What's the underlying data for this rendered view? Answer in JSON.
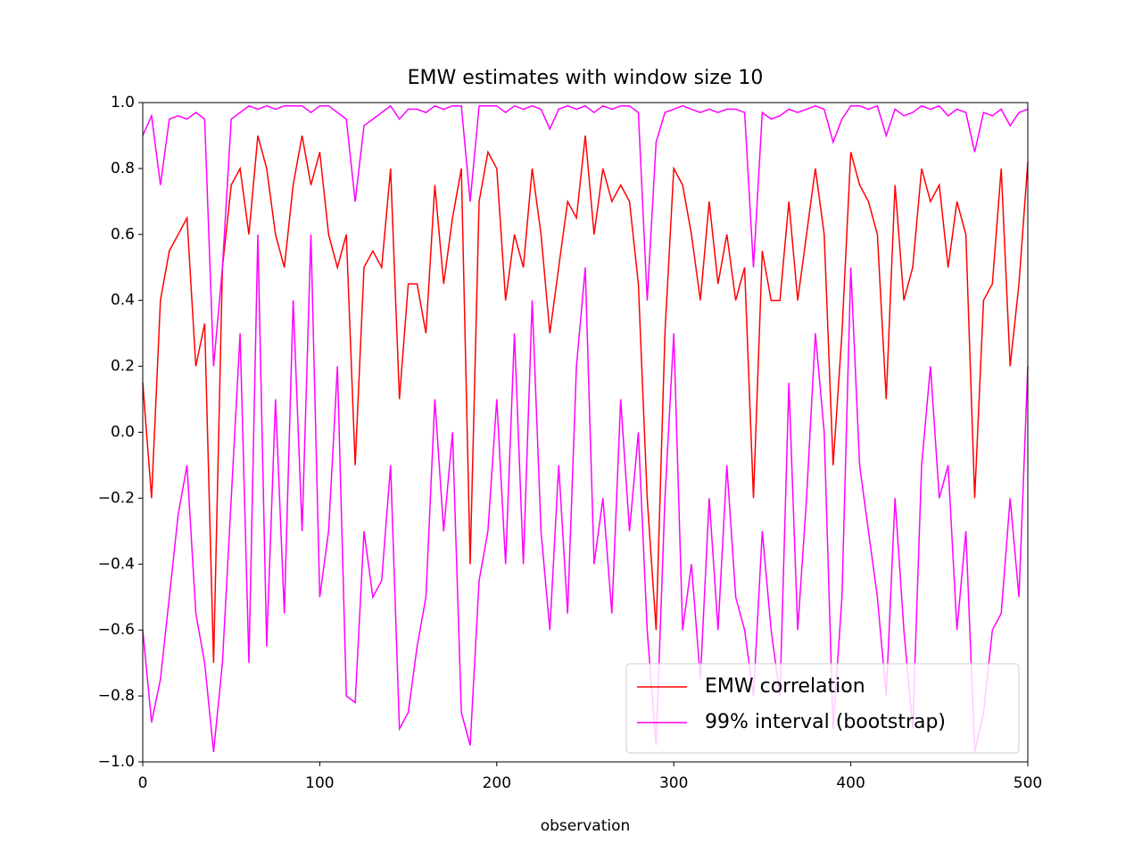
{
  "chart_data": {
    "type": "line",
    "title": "EMW estimates with window size 10",
    "x_label": "observation",
    "x": [
      0,
      5,
      10,
      15,
      20,
      25,
      30,
      35,
      40,
      45,
      50,
      55,
      60,
      65,
      70,
      75,
      80,
      85,
      90,
      95,
      100,
      105,
      110,
      115,
      120,
      125,
      130,
      135,
      140,
      145,
      150,
      155,
      160,
      165,
      170,
      175,
      180,
      185,
      190,
      195,
      200,
      205,
      210,
      215,
      220,
      225,
      230,
      235,
      240,
      245,
      250,
      255,
      260,
      265,
      270,
      275,
      280,
      285,
      290,
      295,
      300,
      305,
      310,
      315,
      320,
      325,
      330,
      335,
      340,
      345,
      350,
      355,
      360,
      365,
      370,
      375,
      380,
      385,
      390,
      395,
      400,
      405,
      410,
      415,
      420,
      425,
      430,
      435,
      440,
      445,
      450,
      455,
      460,
      465,
      470,
      475,
      480,
      485,
      490,
      495,
      500
    ],
    "series": [
      {
        "name": "EMW correlation",
        "color": "#ff0000",
        "values": [
          0.15,
          -0.2,
          0.4,
          0.55,
          0.6,
          0.65,
          0.2,
          0.33,
          -0.7,
          0.5,
          0.75,
          0.8,
          0.6,
          0.9,
          0.8,
          0.6,
          0.5,
          0.75,
          0.9,
          0.75,
          0.85,
          0.6,
          0.5,
          0.6,
          -0.1,
          0.5,
          0.55,
          0.5,
          0.8,
          0.1,
          0.45,
          0.45,
          0.3,
          0.75,
          0.45,
          0.65,
          0.8,
          -0.4,
          0.7,
          0.85,
          0.8,
          0.4,
          0.6,
          0.5,
          0.8,
          0.6,
          0.3,
          0.5,
          0.7,
          0.65,
          0.9,
          0.6,
          0.8,
          0.7,
          0.75,
          0.7,
          0.45,
          -0.2,
          -0.6,
          0.3,
          0.8,
          0.75,
          0.6,
          0.4,
          0.7,
          0.45,
          0.6,
          0.4,
          0.5,
          -0.2,
          0.55,
          0.4,
          0.4,
          0.7,
          0.4,
          0.6,
          0.8,
          0.6,
          -0.1,
          0.3,
          0.85,
          0.75,
          0.7,
          0.6,
          0.1,
          0.75,
          0.4,
          0.5,
          0.8,
          0.7,
          0.75,
          0.5,
          0.7,
          0.6,
          -0.2,
          0.4,
          0.45,
          0.8,
          0.2,
          0.45,
          0.82
        ]
      },
      {
        "name": "99% interval (bootstrap)",
        "color": "#ff00ff",
        "values": [
          0.9,
          0.96,
          0.75,
          0.95,
          0.96,
          0.95,
          0.97,
          0.95,
          0.2,
          0.5,
          0.95,
          0.97,
          0.99,
          0.98,
          0.99,
          0.98,
          0.99,
          0.99,
          0.99,
          0.97,
          0.99,
          0.99,
          0.97,
          0.95,
          0.7,
          0.93,
          0.95,
          0.97,
          0.99,
          0.95,
          0.98,
          0.98,
          0.97,
          0.99,
          0.98,
          0.99,
          0.99,
          0.7,
          0.99,
          0.99,
          0.99,
          0.97,
          0.99,
          0.98,
          0.99,
          0.98,
          0.92,
          0.98,
          0.99,
          0.98,
          0.99,
          0.97,
          0.99,
          0.98,
          0.99,
          0.99,
          0.97,
          0.4,
          0.88,
          0.97,
          0.98,
          0.99,
          0.98,
          0.97,
          0.98,
          0.97,
          0.98,
          0.98,
          0.97,
          0.5,
          0.97,
          0.95,
          0.96,
          0.98,
          0.97,
          0.98,
          0.99,
          0.98,
          0.88,
          0.95,
          0.99,
          0.99,
          0.98,
          0.99,
          0.9,
          0.98,
          0.96,
          0.97,
          0.99,
          0.98,
          0.99,
          0.96,
          0.98,
          0.97,
          0.85,
          0.97,
          0.96,
          0.98,
          0.93,
          0.97,
          0.98
        ]
      },
      {
        "name": null,
        "color": "#ff00ff",
        "values": [
          -0.6,
          -0.88,
          -0.75,
          -0.5,
          -0.25,
          -0.1,
          -0.55,
          -0.7,
          -0.97,
          -0.7,
          -0.2,
          0.3,
          -0.7,
          0.6,
          -0.65,
          0.1,
          -0.55,
          0.4,
          -0.3,
          0.6,
          -0.5,
          -0.3,
          0.2,
          -0.8,
          -0.82,
          -0.3,
          -0.5,
          -0.45,
          -0.1,
          -0.9,
          -0.85,
          -0.65,
          -0.5,
          0.1,
          -0.3,
          0.0,
          -0.85,
          -0.95,
          -0.45,
          -0.3,
          0.1,
          -0.4,
          0.3,
          -0.4,
          0.4,
          -0.3,
          -0.6,
          -0.1,
          -0.55,
          0.2,
          0.5,
          -0.4,
          -0.2,
          -0.55,
          0.1,
          -0.3,
          0.0,
          -0.6,
          -0.95,
          -0.2,
          0.3,
          -0.6,
          -0.4,
          -0.75,
          -0.2,
          -0.6,
          -0.1,
          -0.5,
          -0.6,
          -0.8,
          -0.3,
          -0.6,
          -0.8,
          0.15,
          -0.6,
          -0.2,
          0.3,
          0.0,
          -0.9,
          -0.5,
          0.5,
          -0.1,
          -0.3,
          -0.5,
          -0.8,
          -0.2,
          -0.6,
          -0.9,
          -0.1,
          0.2,
          -0.2,
          -0.1,
          -0.6,
          -0.3,
          -0.97,
          -0.85,
          -0.6,
          -0.55,
          -0.2,
          -0.5,
          0.2
        ]
      }
    ],
    "xlim": [
      0,
      500
    ],
    "ylim": [
      -1.0,
      1.0
    ],
    "xticks": [
      0,
      100,
      200,
      300,
      400,
      500
    ],
    "yticks": [
      {
        "value": -1.0,
        "label": "−1.0"
      },
      {
        "value": -0.8,
        "label": "−0.8"
      },
      {
        "value": -0.6,
        "label": "−0.6"
      },
      {
        "value": -0.4,
        "label": "−0.4"
      },
      {
        "value": -0.2,
        "label": "−0.2"
      },
      {
        "value": 0.0,
        "label": "0.0"
      },
      {
        "value": 0.2,
        "label": "0.2"
      },
      {
        "value": 0.4,
        "label": "0.4"
      },
      {
        "value": 0.6,
        "label": "0.6"
      },
      {
        "value": 0.8,
        "label": "0.8"
      },
      {
        "value": 1.0,
        "label": "1.0"
      }
    ],
    "legend": "lower right",
    "grid": false
  }
}
